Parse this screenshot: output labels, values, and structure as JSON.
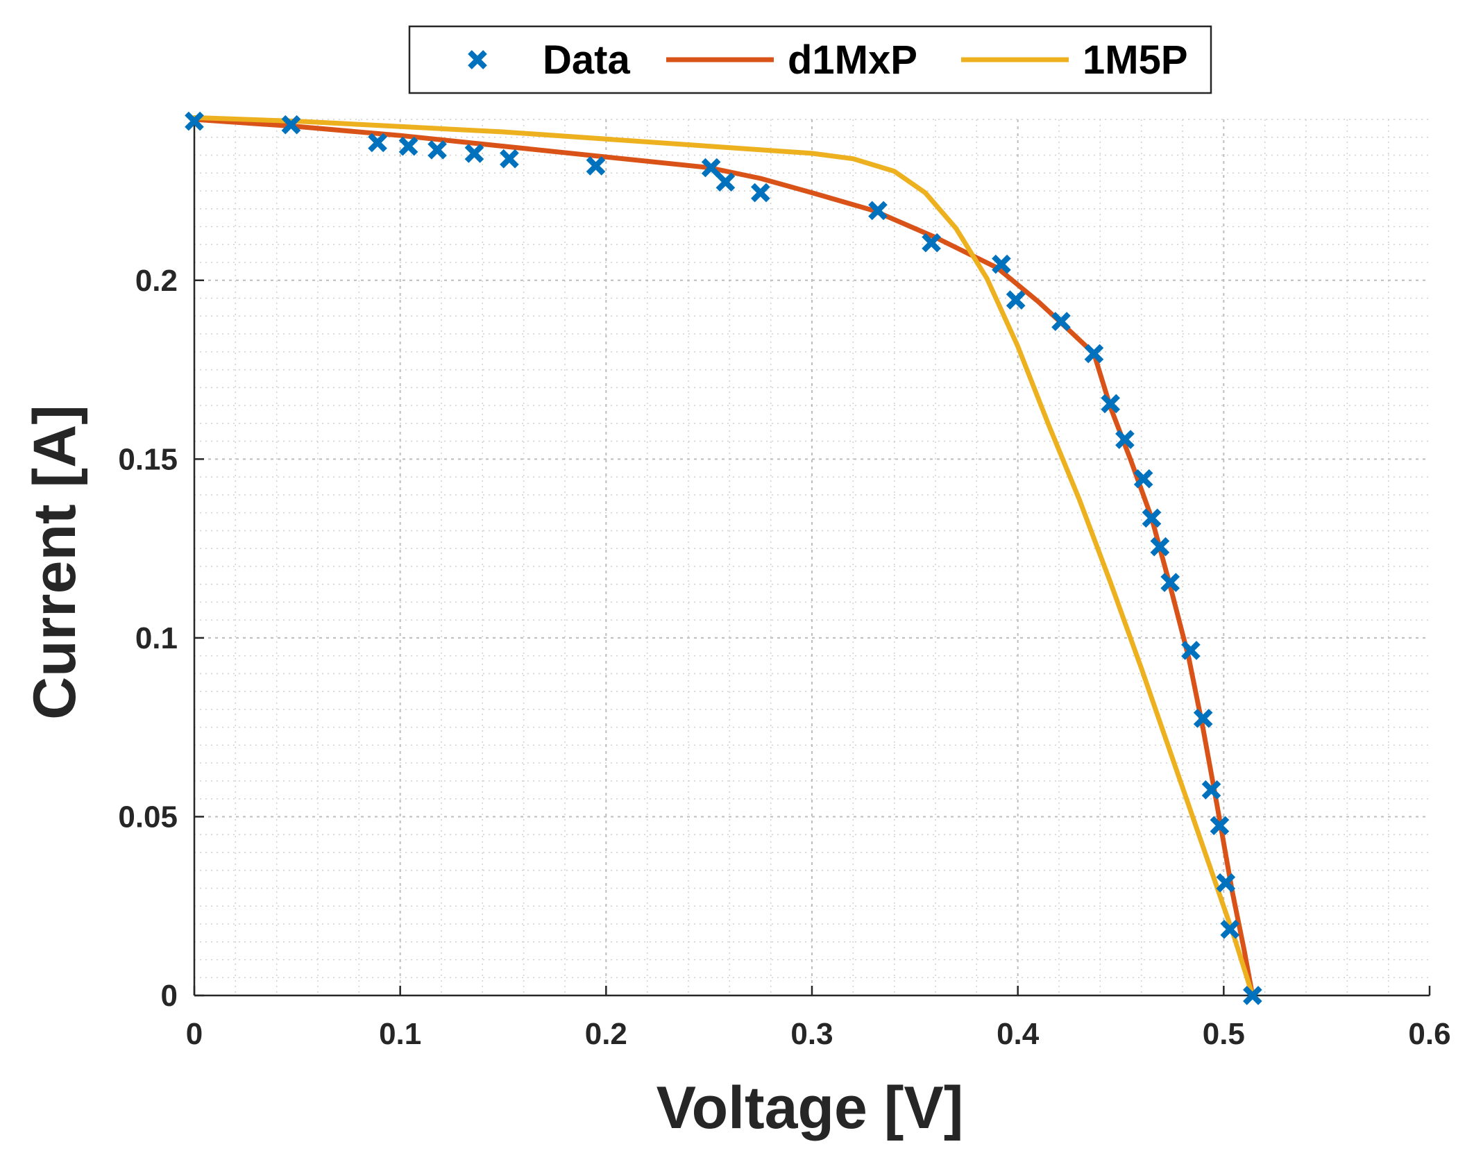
{
  "chart_data": {
    "type": "line",
    "xlabel": "Voltage [V]",
    "ylabel": "Current [A]",
    "xlim": [
      0,
      0.6
    ],
    "ylim": [
      0,
      0.245
    ],
    "xticks": [
      "0",
      "0.1",
      "0.2",
      "0.3",
      "0.4",
      "0.5",
      "0.6"
    ],
    "yticks": [
      "0",
      "0.05",
      "0.1",
      "0.15",
      "0.2"
    ],
    "grid": true,
    "minor_grid": true,
    "legend": {
      "position": "top-center",
      "orientation": "horizontal"
    },
    "colors": {
      "data": "#0072BD",
      "d1MxP": "#D95319",
      "1M5P": "#EDB120"
    },
    "series": [
      {
        "name": "Data",
        "kind": "scatter",
        "marker": "x",
        "points": [
          [
            0.0,
            0.2445
          ],
          [
            0.047,
            0.2435
          ],
          [
            0.089,
            0.2385
          ],
          [
            0.104,
            0.2375
          ],
          [
            0.118,
            0.2365
          ],
          [
            0.136,
            0.2355
          ],
          [
            0.153,
            0.234
          ],
          [
            0.195,
            0.232
          ],
          [
            0.251,
            0.2315
          ],
          [
            0.258,
            0.2275
          ],
          [
            0.275,
            0.2245
          ],
          [
            0.332,
            0.2195
          ],
          [
            0.358,
            0.2105
          ],
          [
            0.392,
            0.2045
          ],
          [
            0.399,
            0.1945
          ],
          [
            0.421,
            0.1885
          ],
          [
            0.437,
            0.1795
          ],
          [
            0.445,
            0.1655
          ],
          [
            0.452,
            0.1555
          ],
          [
            0.461,
            0.1445
          ],
          [
            0.465,
            0.1335
          ],
          [
            0.469,
            0.1255
          ],
          [
            0.474,
            0.1155
          ],
          [
            0.484,
            0.0965
          ],
          [
            0.49,
            0.0775
          ],
          [
            0.494,
            0.0575
          ],
          [
            0.498,
            0.0475
          ],
          [
            0.501,
            0.0315
          ],
          [
            0.503,
            0.0185
          ],
          [
            0.514,
            0.0
          ]
        ]
      },
      {
        "name": "d1MxP",
        "kind": "line",
        "points": [
          [
            0.0,
            0.245
          ],
          [
            0.05,
            0.243
          ],
          [
            0.1,
            0.2405
          ],
          [
            0.15,
            0.2375
          ],
          [
            0.2,
            0.2345
          ],
          [
            0.25,
            0.2315
          ],
          [
            0.275,
            0.2285
          ],
          [
            0.3,
            0.2245
          ],
          [
            0.33,
            0.2195
          ],
          [
            0.36,
            0.212
          ],
          [
            0.39,
            0.2035
          ],
          [
            0.41,
            0.194
          ],
          [
            0.425,
            0.186
          ],
          [
            0.437,
            0.1795
          ],
          [
            0.445,
            0.1645
          ],
          [
            0.455,
            0.1495
          ],
          [
            0.465,
            0.1335
          ],
          [
            0.474,
            0.1145
          ],
          [
            0.483,
            0.0945
          ],
          [
            0.49,
            0.0745
          ],
          [
            0.497,
            0.0525
          ],
          [
            0.504,
            0.0295
          ],
          [
            0.51,
            0.0125
          ],
          [
            0.514,
            0.0
          ]
        ]
      },
      {
        "name": "1M5P",
        "kind": "line",
        "points": [
          [
            0.0,
            0.2455
          ],
          [
            0.05,
            0.2445
          ],
          [
            0.1,
            0.243
          ],
          [
            0.15,
            0.2415
          ],
          [
            0.2,
            0.2395
          ],
          [
            0.25,
            0.2375
          ],
          [
            0.3,
            0.2355
          ],
          [
            0.32,
            0.234
          ],
          [
            0.34,
            0.2305
          ],
          [
            0.355,
            0.2245
          ],
          [
            0.37,
            0.2145
          ],
          [
            0.385,
            0.2005
          ],
          [
            0.4,
            0.1815
          ],
          [
            0.415,
            0.1595
          ],
          [
            0.43,
            0.1385
          ],
          [
            0.445,
            0.1155
          ],
          [
            0.46,
            0.0915
          ],
          [
            0.475,
            0.0665
          ],
          [
            0.49,
            0.0415
          ],
          [
            0.505,
            0.0165
          ],
          [
            0.514,
            0.0
          ]
        ]
      }
    ]
  }
}
